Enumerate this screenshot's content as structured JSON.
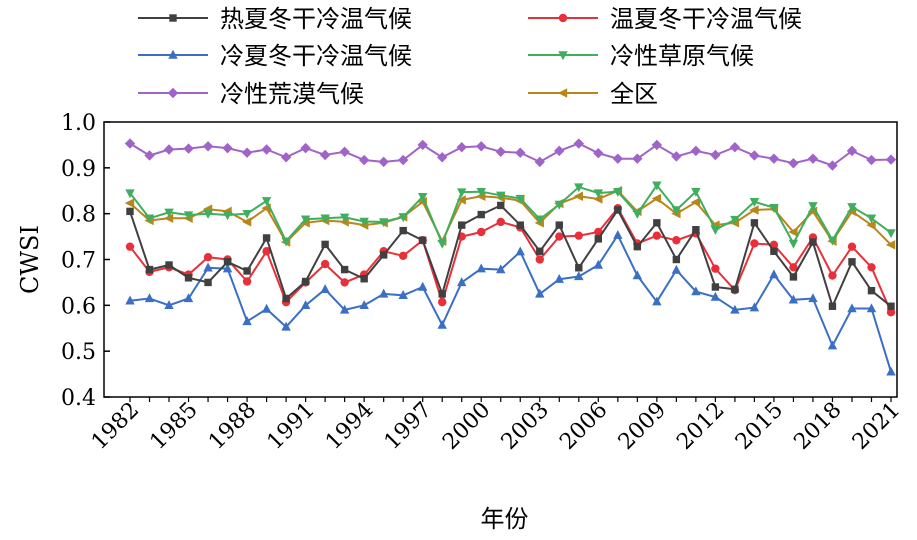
{
  "chart_data": {
    "type": "line",
    "title": "",
    "xlabel": "年份",
    "ylabel": "CWSI",
    "ylim": [
      0.4,
      1.0
    ],
    "yticks": [
      "0.4",
      "0.5",
      "0.6",
      "0.7",
      "0.8",
      "0.9",
      "1.0"
    ],
    "yticks_values": [
      0.4,
      0.5,
      0.6,
      0.7,
      0.8,
      0.9,
      1.0
    ],
    "xticks": [
      "1982",
      "1985",
      "1988",
      "1991",
      "1994",
      "1997",
      "2000",
      "2003",
      "2006",
      "2009",
      "2012",
      "2015",
      "2018",
      "2021"
    ],
    "x": [
      1982,
      1983,
      1984,
      1985,
      1986,
      1987,
      1988,
      1989,
      1990,
      1991,
      1992,
      1993,
      1994,
      1995,
      1996,
      1997,
      1998,
      1999,
      2000,
      2001,
      2002,
      2003,
      2004,
      2005,
      2006,
      2007,
      2008,
      2009,
      2010,
      2011,
      2012,
      2013,
      2014,
      2015,
      2016,
      2017,
      2018,
      2019,
      2020,
      2021
    ],
    "legend_position": "top",
    "series": [
      {
        "name": "热夏冬干冷温气候",
        "color": "#404040",
        "marker": "square",
        "values": [
          0.805,
          0.678,
          0.688,
          0.66,
          0.65,
          0.695,
          0.675,
          0.747,
          0.615,
          0.652,
          0.733,
          0.678,
          0.658,
          0.71,
          0.763,
          0.742,
          0.625,
          0.775,
          0.798,
          0.818,
          0.775,
          0.718,
          0.775,
          0.682,
          0.745,
          0.808,
          0.728,
          0.78,
          0.7,
          0.765,
          0.64,
          0.635,
          0.78,
          0.718,
          0.662,
          0.738,
          0.598,
          0.695,
          0.632,
          0.598
        ]
      },
      {
        "name": "温夏冬干冷温气候",
        "color": "#e8303a",
        "marker": "circle",
        "values": [
          0.728,
          0.673,
          0.683,
          0.667,
          0.705,
          0.7,
          0.652,
          0.718,
          0.607,
          0.65,
          0.69,
          0.65,
          0.667,
          0.718,
          0.708,
          0.742,
          0.607,
          0.75,
          0.76,
          0.782,
          0.77,
          0.7,
          0.75,
          0.752,
          0.76,
          0.812,
          0.735,
          0.752,
          0.742,
          0.757,
          0.68,
          0.633,
          0.735,
          0.732,
          0.683,
          0.748,
          0.665,
          0.728,
          0.683,
          0.585
        ]
      },
      {
        "name": "冷夏冬干冷温气候",
        "color": "#3a6fc4",
        "marker": "triangle-up",
        "values": [
          0.61,
          0.615,
          0.6,
          0.615,
          0.682,
          0.68,
          0.565,
          0.592,
          0.553,
          0.6,
          0.635,
          0.59,
          0.6,
          0.625,
          0.622,
          0.64,
          0.557,
          0.65,
          0.68,
          0.678,
          0.717,
          0.625,
          0.657,
          0.663,
          0.688,
          0.753,
          0.665,
          0.608,
          0.677,
          0.63,
          0.618,
          0.59,
          0.595,
          0.667,
          0.612,
          0.615,
          0.512,
          0.593,
          0.593,
          0.455
        ]
      },
      {
        "name": "冷性草原气候",
        "color": "#3fae5e",
        "marker": "triangle-down",
        "values": [
          0.845,
          0.79,
          0.803,
          0.797,
          0.8,
          0.797,
          0.8,
          0.828,
          0.74,
          0.788,
          0.79,
          0.792,
          0.783,
          0.782,
          0.793,
          0.837,
          0.735,
          0.847,
          0.848,
          0.84,
          0.833,
          0.788,
          0.82,
          0.858,
          0.845,
          0.848,
          0.8,
          0.862,
          0.808,
          0.848,
          0.765,
          0.787,
          0.826,
          0.813,
          0.735,
          0.817,
          0.742,
          0.815,
          0.79,
          0.758
        ]
      },
      {
        "name": "冷性荒漠气候",
        "color": "#a064c8",
        "marker": "diamond",
        "values": [
          0.953,
          0.927,
          0.94,
          0.942,
          0.947,
          0.943,
          0.933,
          0.94,
          0.923,
          0.943,
          0.928,
          0.935,
          0.917,
          0.913,
          0.917,
          0.95,
          0.923,
          0.945,
          0.947,
          0.935,
          0.933,
          0.913,
          0.937,
          0.953,
          0.932,
          0.92,
          0.92,
          0.95,
          0.925,
          0.937,
          0.928,
          0.945,
          0.927,
          0.92,
          0.91,
          0.92,
          0.905,
          0.937,
          0.917,
          0.918
        ]
      },
      {
        "name": "全区",
        "color": "#b8861b",
        "marker": "triangle-left",
        "values": [
          0.823,
          0.785,
          0.79,
          0.79,
          0.81,
          0.805,
          0.782,
          0.812,
          0.738,
          0.78,
          0.785,
          0.782,
          0.775,
          0.78,
          0.793,
          0.826,
          0.74,
          0.83,
          0.838,
          0.835,
          0.828,
          0.78,
          0.822,
          0.838,
          0.832,
          0.85,
          0.805,
          0.833,
          0.8,
          0.825,
          0.775,
          0.78,
          0.808,
          0.81,
          0.76,
          0.805,
          0.74,
          0.805,
          0.775,
          0.732
        ]
      }
    ]
  }
}
